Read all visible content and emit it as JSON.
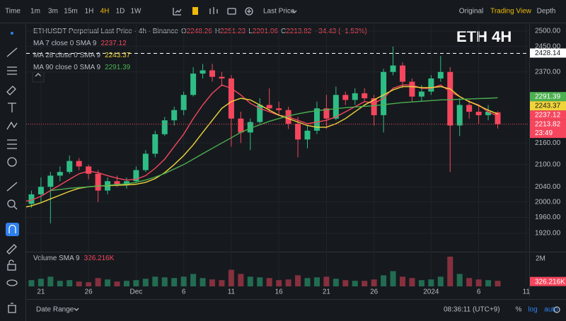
{
  "toolbar": {
    "intervals": [
      "Time",
      "1m",
      "3m",
      "15m",
      "1H",
      "4H",
      "1D",
      "1W"
    ],
    "active": "4H",
    "price_type": "Last Price",
    "views": [
      "Original",
      "Trading View",
      "Depth"
    ],
    "active_view": "Trading View"
  },
  "chart_data": {
    "type": "candlestick",
    "title": "ETHUSDT Perpetual Last Price · 4h · Binance",
    "overlay_title": "ETH 4H",
    "ohlc_labels": [
      "O",
      "H",
      "L",
      "C"
    ],
    "change": "−34.43 (−1.53%)",
    "up_color": "#2ebd85",
    "down_color": "#f6465d",
    "categories": [
      null,
      null,
      "21",
      null,
      null,
      null,
      null,
      "26",
      null,
      null,
      null,
      null,
      "Dec",
      null,
      null,
      null,
      null,
      "6",
      null,
      null,
      null,
      null,
      "11",
      null,
      null,
      null,
      null,
      "16",
      null,
      null,
      null,
      null,
      "21",
      null,
      null,
      null,
      null,
      "26",
      null,
      null,
      null,
      null,
      null,
      "2024",
      null,
      null,
      null,
      null,
      "6",
      null,
      null,
      null,
      null,
      "11"
    ],
    "open": [
      2000,
      1995,
      2020,
      2040,
      2070,
      2080,
      2110,
      2095,
      2075,
      2030,
      2055,
      2045,
      2055,
      2085,
      2130,
      2185,
      2225,
      2255,
      2300,
      2365,
      2375,
      2355,
      2350,
      2230,
      2190,
      2220,
      2270,
      2260,
      2255,
      2215,
      2170,
      2195,
      2260,
      2230,
      2300,
      2285,
      2305,
      2290,
      2240,
      2370,
      2390,
      2340,
      2295,
      2310,
      2350,
      2370,
      2210,
      2270,
      2250,
      2240,
      2248.26,
      null,
      null,
      null
    ],
    "high": [
      2015,
      2030,
      2065,
      2080,
      2095,
      2125,
      2118,
      2100,
      2085,
      2065,
      2070,
      2065,
      2095,
      2140,
      2195,
      2235,
      2265,
      2310,
      2385,
      2395,
      2395,
      2370,
      2360,
      2250,
      2230,
      2290,
      2320,
      2280,
      2265,
      2235,
      2210,
      2280,
      2300,
      2325,
      2310,
      2320,
      2320,
      2300,
      2380,
      2450,
      2400,
      2350,
      2330,
      2360,
      2420,
      2385,
      2290,
      2285,
      2270,
      2270,
      2251.23,
      null,
      null,
      null
    ],
    "low": [
      1975,
      1985,
      2000,
      1945,
      2055,
      2075,
      2085,
      2060,
      2000,
      2020,
      2040,
      2035,
      2050,
      2080,
      2120,
      2180,
      2210,
      2240,
      2295,
      2350,
      2340,
      2330,
      2150,
      2160,
      2140,
      2215,
      2250,
      2240,
      2200,
      2120,
      2145,
      2185,
      2200,
      2225,
      2270,
      2270,
      2280,
      2210,
      2190,
      2360,
      2320,
      2280,
      2280,
      2300,
      2340,
      2080,
      2180,
      2230,
      2215,
      2225,
      2201.06,
      null,
      null,
      null
    ],
    "close": [
      1995,
      2020,
      2040,
      2070,
      2080,
      2110,
      2095,
      2075,
      2030,
      2055,
      2045,
      2055,
      2085,
      2130,
      2185,
      2225,
      2255,
      2300,
      2365,
      2375,
      2355,
      2350,
      2230,
      2190,
      2220,
      2270,
      2260,
      2255,
      2215,
      2170,
      2195,
      2260,
      2230,
      2300,
      2285,
      2305,
      2290,
      2240,
      2370,
      2390,
      2340,
      2295,
      2310,
      2350,
      2370,
      2210,
      2270,
      2250,
      2240,
      2250,
      2213.82,
      null,
      null,
      null
    ],
    "ma": [
      {
        "name": "MA 7 close 0 SMA 9",
        "color": "#f6465d",
        "last": 2237.12,
        "values": [
          2000,
          2005,
          2015,
          2030,
          2045,
          2060,
          2075,
          2082,
          2078,
          2070,
          2063,
          2058,
          2060,
          2070,
          2090,
          2115,
          2150,
          2185,
          2230,
          2270,
          2305,
          2330,
          2320,
          2300,
          2275,
          2260,
          2250,
          2240,
          2235,
          2225,
          2215,
          2220,
          2225,
          2235,
          2250,
          2265,
          2280,
          2275,
          2290,
          2320,
          2330,
          2330,
          2320,
          2320,
          2330,
          2310,
          2295,
          2280,
          2270,
          2250,
          2237.12,
          null,
          null,
          null
        ]
      },
      {
        "name": "MA 28 close 0 SMA 9",
        "color": "#f0d43a",
        "last": 2243.37,
        "values": [
          1985,
          1990,
          1998,
          2008,
          2018,
          2028,
          2036,
          2040,
          2042,
          2043,
          2044,
          2045,
          2047,
          2052,
          2062,
          2078,
          2100,
          2125,
          2155,
          2190,
          2225,
          2260,
          2280,
          2290,
          2285,
          2270,
          2255,
          2240,
          2230,
          2220,
          2210,
          2205,
          2205,
          2215,
          2230,
          2250,
          2270,
          2285,
          2300,
          2315,
          2325,
          2325,
          2322,
          2322,
          2325,
          2318,
          2295,
          2280,
          2268,
          2255,
          2243.37,
          null,
          null,
          null
        ]
      },
      {
        "name": "MA 90 close 0 SMA 9",
        "color": "#4caf50",
        "last": 2291.39,
        "values": [
          null,
          null,
          null,
          2030,
          2033,
          2036,
          2038,
          2040,
          2042,
          2044,
          2046,
          2048,
          2052,
          2058,
          2066,
          2076,
          2088,
          2100,
          2115,
          2130,
          2145,
          2160,
          2175,
          2190,
          2202,
          2212,
          2222,
          2230,
          2238,
          2244,
          2249,
          2253,
          2256,
          2259,
          2262,
          2264,
          2266,
          2268,
          2271,
          2274,
          2277,
          2279,
          2281,
          2283,
          2285,
          2286,
          2287,
          2288,
          2289,
          2290,
          2291.39,
          null,
          null,
          null
        ]
      }
    ],
    "yscale": "log",
    "ylim": [
      1876,
      2523
    ],
    "yticks": [
      {
        "value": 2500,
        "label": "2500.00"
      },
      {
        "value": 2450,
        "label": "2450.00"
      },
      {
        "value": 2370,
        "label": "2370.00"
      },
      {
        "value": 2160,
        "label": "2160.00"
      },
      {
        "value": 2100,
        "label": "2100.00"
      },
      {
        "value": 2040,
        "label": "2040.00"
      },
      {
        "value": 2000,
        "label": "2000.00"
      },
      {
        "value": 1960,
        "label": "1960.00"
      },
      {
        "value": 1920,
        "label": "1920.00"
      }
    ],
    "grid": true,
    "price_line": 2428.14,
    "countdown": "23:49",
    "volume": {
      "title": "Volume SMA 9",
      "sma": {
        "value": 326216,
        "label": "326.216K"
      },
      "ylim": [
        0,
        2200000
      ],
      "yticks": [
        {
          "value": 2000000,
          "label": "2M"
        }
      ],
      "values": [
        500000,
        450000,
        550000,
        700000,
        400000,
        450000,
        350000,
        300000,
        600000,
        500000,
        350000,
        400000,
        450000,
        550000,
        700000,
        650000,
        600000,
        700000,
        900000,
        600000,
        500000,
        450000,
        1200000,
        900000,
        700000,
        650000,
        600000,
        450000,
        500000,
        800000,
        600000,
        650000,
        700000,
        550000,
        450000,
        400000,
        400000,
        500000,
        800000,
        1100000,
        700000,
        600000,
        450000,
        500000,
        700000,
        2150000,
        900000,
        600000,
        500000,
        450000,
        400000,
        null,
        null,
        null
      ]
    }
  },
  "footer": {
    "date_range": "Date Range",
    "time": "08:36:11 (UTC+9)",
    "options": [
      "%",
      "log",
      "auto"
    ]
  }
}
